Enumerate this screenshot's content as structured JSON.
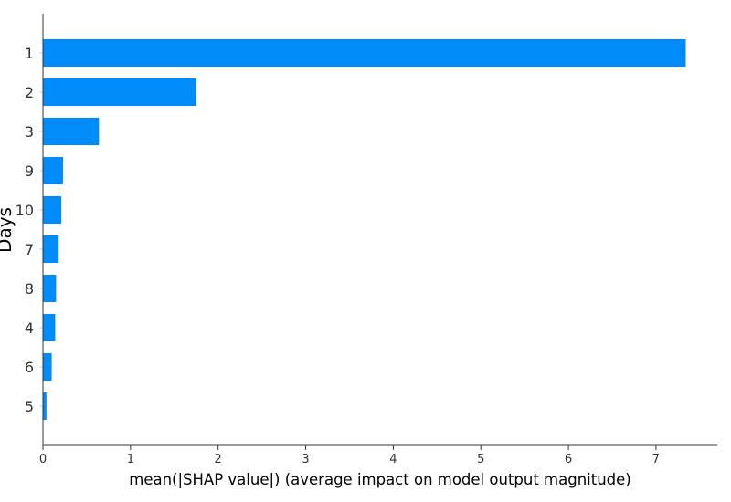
{
  "chart_data": {
    "type": "bar",
    "orientation": "horizontal",
    "categories": [
      "1",
      "2",
      "3",
      "9",
      "10",
      "7",
      "8",
      "4",
      "6",
      "5"
    ],
    "values": [
      7.34,
      1.75,
      0.64,
      0.23,
      0.21,
      0.18,
      0.15,
      0.14,
      0.1,
      0.04
    ],
    "title": "",
    "xlabel": "mean(|SHAP value|) (average impact on model output magnitude)",
    "ylabel": "Days",
    "xlim": [
      0,
      7.7
    ],
    "xticks": [
      "0",
      "1",
      "2",
      "3",
      "4",
      "5",
      "6",
      "7"
    ],
    "bar_color": "#008bfb",
    "grid": false,
    "legend": "none"
  }
}
